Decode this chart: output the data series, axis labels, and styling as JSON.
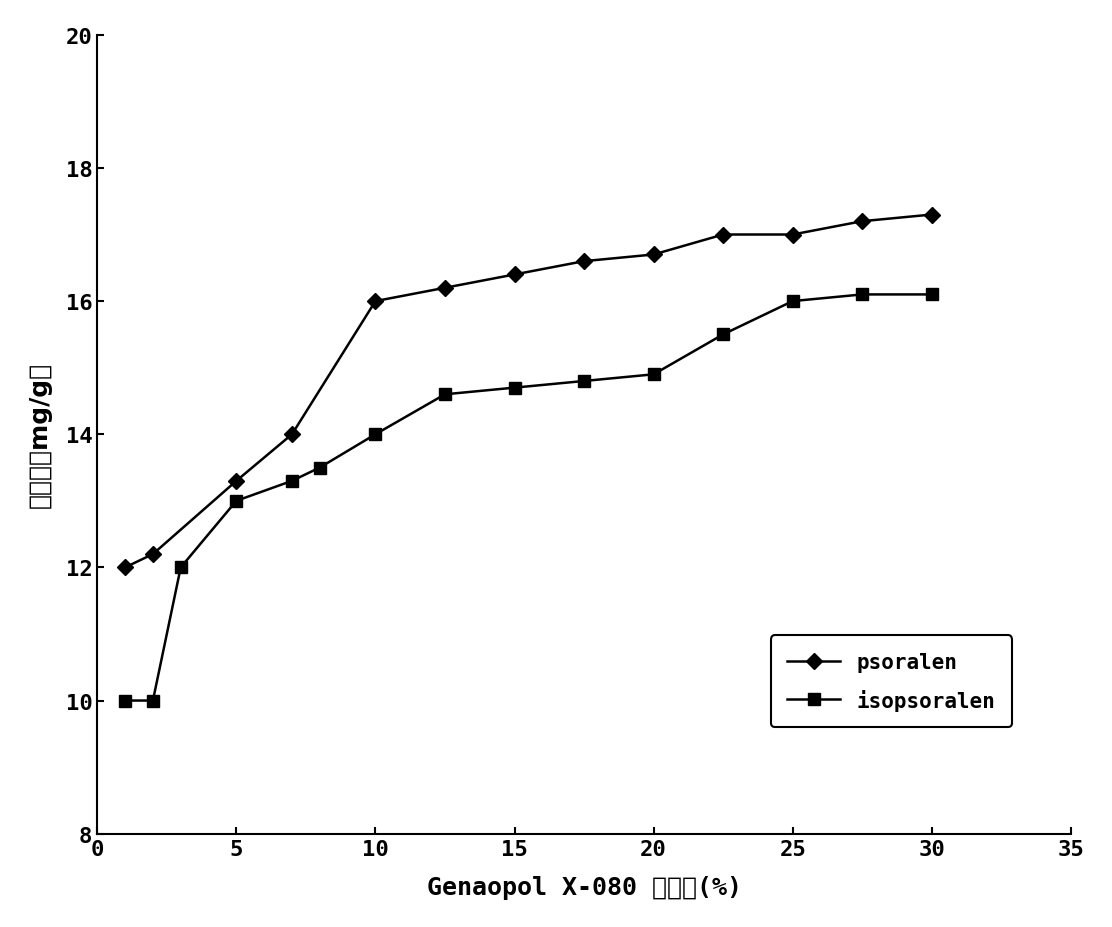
{
  "psoralen_x": [
    1,
    2,
    5,
    7,
    10,
    12.5,
    15,
    17.5,
    20,
    22.5,
    25,
    27.5,
    30
  ],
  "psoralen_y": [
    12.0,
    12.2,
    13.3,
    14.0,
    16.0,
    16.2,
    16.4,
    16.6,
    16.7,
    17.0,
    17.0,
    17.2,
    17.3
  ],
  "isopsoralen_x": [
    1,
    2,
    3,
    5,
    7,
    8,
    10,
    12.5,
    15,
    17.5,
    20,
    22.5,
    25,
    27.5,
    30
  ],
  "isopsoralen_y": [
    10.0,
    10.0,
    12.0,
    13.0,
    13.3,
    13.5,
    14.0,
    14.6,
    14.7,
    14.8,
    14.9,
    15.5,
    16.0,
    16.1,
    16.1
  ],
  "xlabel_latin": "Genaopol X-080 ",
  "xlabel_chinese": "的浓度",
  "xlabel_paren": "(%)",
  "ylabel_chinese": "提取率",
  "ylabel_paren": "（mg/g）",
  "xlim": [
    0,
    35
  ],
  "ylim": [
    8,
    20
  ],
  "yticks": [
    8,
    10,
    12,
    14,
    16,
    18,
    20
  ],
  "xticks": [
    0,
    5,
    10,
    15,
    20,
    25,
    30,
    35
  ],
  "line_color": "#000000",
  "background_color": "#ffffff",
  "legend_psoralen": "psoralen",
  "legend_isopsoralen": "isopsoralen",
  "tick_fontsize": 16,
  "label_fontsize": 18,
  "legend_fontsize": 15
}
